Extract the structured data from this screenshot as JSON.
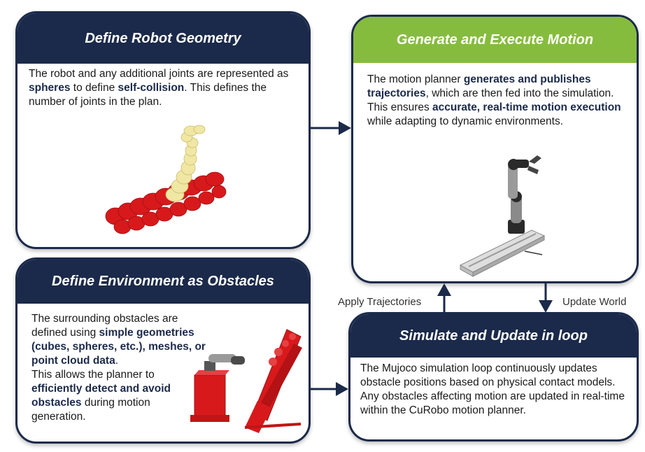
{
  "colors": {
    "navy": "#1b2a4a",
    "green": "#86bc3d",
    "robot_red": "#d8191c",
    "robot_yellow": "#f1e7a4"
  },
  "cards": {
    "geometry": {
      "title": "Define Robot Geometry",
      "body": [
        {
          "t": "The robot and any additional joints are represented as "
        },
        {
          "t": "spheres",
          "b": true
        },
        {
          "t": " to define "
        },
        {
          "t": "self-collision",
          "b": true
        },
        {
          "t": ". This defines the number of joints in the plan."
        }
      ]
    },
    "motion": {
      "title": "Generate and Execute Motion",
      "para1": [
        {
          "t": "The motion planner "
        },
        {
          "t": "generates and publishes trajectories",
          "b": true
        },
        {
          "t": ", which are then fed into the simulation."
        }
      ],
      "para2": [
        {
          "t": "This ensures "
        },
        {
          "t": "accurate, real-time motion execution",
          "b": true
        },
        {
          "t": " while adapting to dynamic environments."
        }
      ]
    },
    "environment": {
      "title": "Define Environment as Obstacles",
      "para1": [
        {
          "t": "The surrounding obstacles are defined using "
        },
        {
          "t": "simple geometries (cubes, spheres, etc.), meshes, or point cloud data",
          "b": true
        },
        {
          "t": "."
        }
      ],
      "para2": [
        {
          "t": "This allows the planner to "
        },
        {
          "t": "efficiently detect and avoid obstacles",
          "b": true
        },
        {
          "t": " during motion generation."
        }
      ]
    },
    "simulate": {
      "title": "Simulate and Update in loop",
      "body": [
        {
          "t": "The Mujoco simulation loop continuously updates obstacle positions based on physical contact models. Any obstacles affecting motion are updated in real-time within the CuRobo motion planner."
        }
      ]
    }
  },
  "labels": {
    "apply": "Apply Trajectories",
    "update": "Update World"
  }
}
